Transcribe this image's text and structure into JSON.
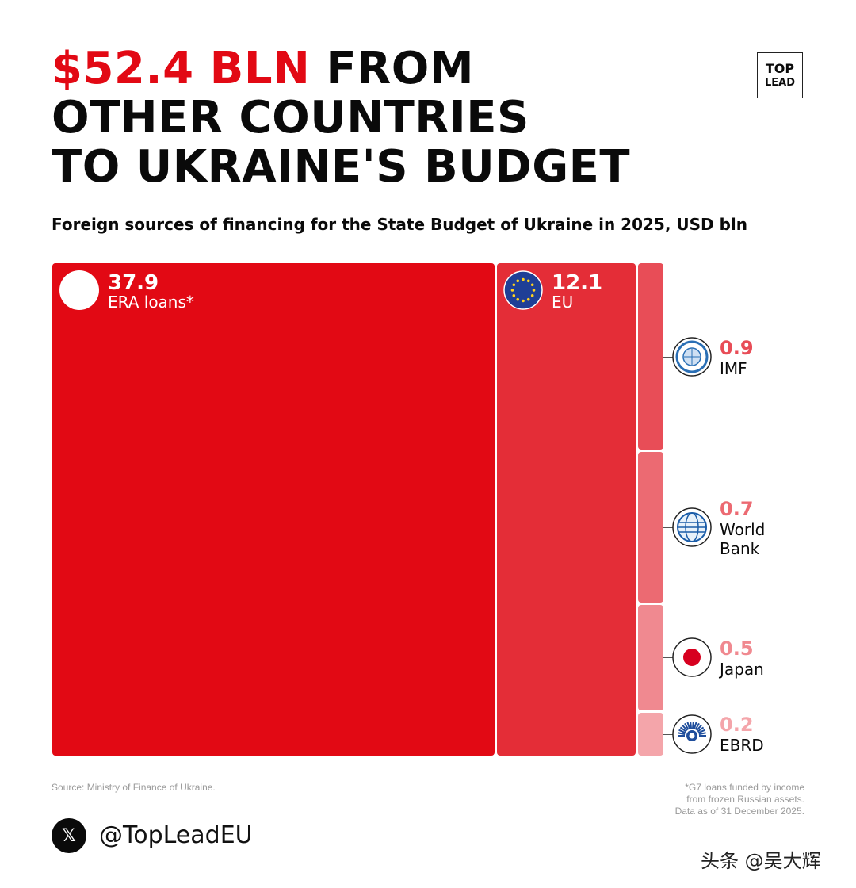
{
  "header": {
    "title_accent": "$52.4 BLN",
    "title_rest_1": "FROM",
    "title_line_2": "OTHER COUNTRIES",
    "title_line_3": "TO UKRAINE'S BUDGET",
    "subtitle": "Foreign sources of financing for the State Budget of Ukraine in 2025, USD bln"
  },
  "logo": {
    "line1": "TOP",
    "line2": "LEAD"
  },
  "chart_data": {
    "type": "treemap",
    "title": "$52.4 BLN FROM OTHER COUNTRIES TO UKRAINE'S BUDGET",
    "subtitle": "Foreign sources of financing for the State Budget of Ukraine in 2025, USD bln",
    "total": 52.4,
    "unit": "USD bln",
    "items": [
      {
        "label": "ERA loans*",
        "value_text": "37.9",
        "value": 37.9,
        "color": "#e20914",
        "icon": "g7-logo-icon"
      },
      {
        "label": "EU",
        "value_text": "12.1",
        "value": 12.1,
        "color": "#e42d37",
        "icon": "eu-flag-icon"
      },
      {
        "label": "IMF",
        "value_text": "0.9",
        "value": 0.9,
        "color": "#e84d57",
        "icon": "imf-seal-icon"
      },
      {
        "label": "World Bank",
        "value_text": "0.7",
        "value": 0.7,
        "color": "#ec6a72",
        "icon": "world-bank-globe-icon"
      },
      {
        "label": "Japan",
        "value_text": "0.5",
        "value": 0.5,
        "color": "#f08990",
        "icon": "japan-flag-icon"
      },
      {
        "label": "EBRD",
        "value_text": "0.2",
        "value": 0.2,
        "color": "#f4a5aa",
        "icon": "ebrd-logo-icon"
      }
    ]
  },
  "footer": {
    "source": "Source: Ministry of Finance of Ukraine.",
    "note_line1": "*G7 loans funded by income",
    "note_line2": "from frozen Russian assets.",
    "note_line3": "Data as of 31 December 2025.",
    "handle": "@TopLeadEU",
    "x_glyph": "𝕏",
    "watermark": "头条 @吴大辉"
  }
}
